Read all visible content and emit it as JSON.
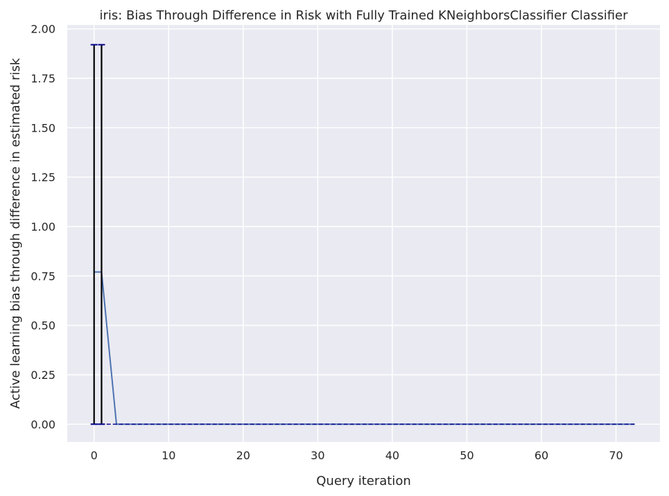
{
  "chart_data": {
    "type": "line",
    "title": "iris: Bias Through Difference in Risk with Fully Trained KNeighborsClassifier Classifier",
    "xlabel": "Query iteration",
    "ylabel": "Active learning bias through difference in estimated risk",
    "xlim": [
      -3.6,
      75.9
    ],
    "ylim": [
      -0.09,
      2.02
    ],
    "xticks": [
      0,
      10,
      20,
      30,
      40,
      50,
      60,
      70
    ],
    "yticks": [
      0.0,
      0.25,
      0.5,
      0.75,
      1.0,
      1.25,
      1.5,
      1.75,
      2.0
    ],
    "xtick_labels": [
      "0",
      "10",
      "20",
      "30",
      "40",
      "50",
      "60",
      "70"
    ],
    "ytick_labels": [
      "0.00",
      "0.25",
      "0.50",
      "0.75",
      "1.00",
      "1.25",
      "1.50",
      "1.75",
      "2.00"
    ],
    "grid": true,
    "series": [
      {
        "color": "#4c72b0",
        "x": [
          0,
          1,
          3,
          72.5
        ],
        "y": [
          0.77,
          0.77,
          0.0,
          0.0
        ]
      }
    ],
    "error_bars": [
      {
        "x": 0,
        "y": 0.77,
        "low": 0.0,
        "high": 1.92
      },
      {
        "x": 1,
        "y": 0.77,
        "low": 0.0,
        "high": 1.92
      }
    ],
    "error_bar_color": "#000000",
    "error_cap_color": "#00008b",
    "background_color": "#eaeaf2",
    "grid_color": "#ffffff"
  }
}
